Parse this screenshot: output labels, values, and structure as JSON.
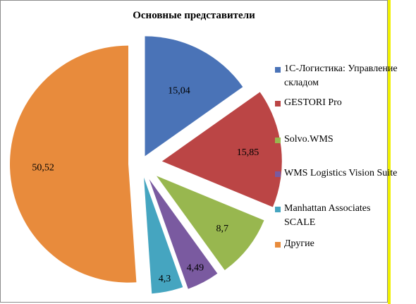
{
  "chart_data": {
    "type": "pie",
    "title": "Основные представители",
    "slices": [
      {
        "label": "1С-Логистика: Управление складом",
        "value": 15.04,
        "display": "15,04",
        "color": "#4a73b7"
      },
      {
        "label": "GESTORI Pro",
        "value": 15.85,
        "display": "15,85",
        "color": "#bb4545"
      },
      {
        "label": "Solvo.WMS",
        "value": 8.7,
        "display": "8,7",
        "color": "#98b74f"
      },
      {
        "label": "WMS Logistics Vision Suite",
        "value": 4.49,
        "display": "4,49",
        "color": "#7a5aa0"
      },
      {
        "label": "Manhattan Associates SCALE",
        "value": 4.3,
        "display": "4,3",
        "color": "#45a5c0"
      },
      {
        "label": "Другие",
        "value": 50.52,
        "display": "50,52",
        "color": "#e88b3c"
      }
    ],
    "legend": "right"
  }
}
